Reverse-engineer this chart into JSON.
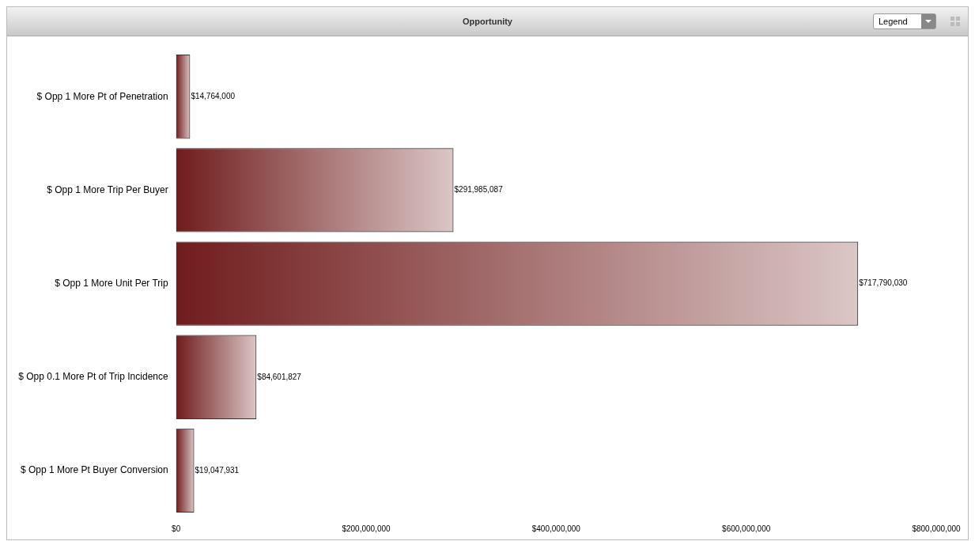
{
  "chart_data": {
    "type": "bar",
    "orientation": "horizontal",
    "title": "Opportunity",
    "categories": [
      "$ Opp 1 More Pt of Penetration",
      "$ Opp 1 More Trip Per Buyer",
      "$ Opp 1 More Unit Per Trip",
      "$ Opp 0.1 More Pt of Trip Incidence",
      "$ Opp 1 More Pt Buyer Conversion"
    ],
    "values": [
      14764000,
      291985087,
      717790030,
      84601827,
      19047931
    ],
    "value_labels": [
      "$14,764,000",
      "$291,985,087",
      "$717,790,030",
      "$84,601,827",
      "$19,047,931"
    ],
    "color": "#701c1c",
    "xlim": [
      0,
      800000000
    ],
    "xticks": [
      {
        "value": 0,
        "label": "$0"
      },
      {
        "value": 200000000,
        "label": "$200,000,000"
      },
      {
        "value": 400000000,
        "label": "$400,000,000"
      },
      {
        "value": 600000000,
        "label": "$600,000,000"
      },
      {
        "value": 800000000,
        "label": "$800,000,000"
      }
    ],
    "grid": false,
    "legend": false,
    "annotations": [
      "Legend"
    ]
  }
}
